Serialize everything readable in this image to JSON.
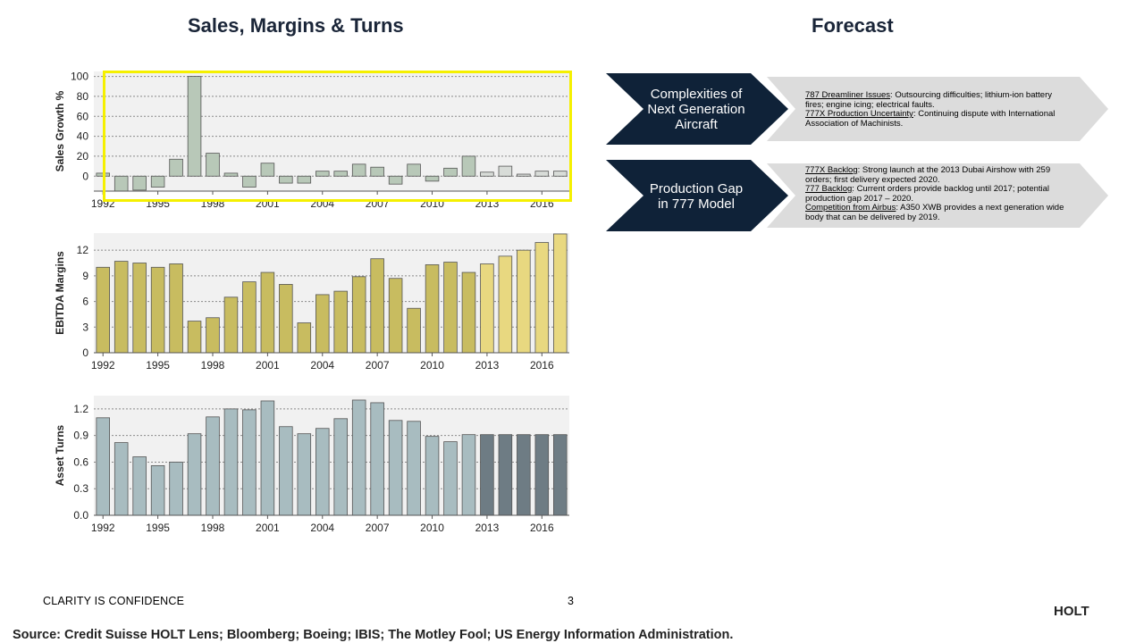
{
  "titles": {
    "left": "Sales, Margins & Turns",
    "right": "Forecast"
  },
  "chart_data": [
    {
      "type": "bar",
      "ylabel": "Sales Growth %",
      "ylim": [
        -15,
        105
      ],
      "yticks": [
        0,
        20,
        40,
        60,
        80,
        100
      ],
      "ytick_labels": [
        "0",
        "20",
        "40",
        "60",
        "80",
        "100"
      ],
      "x": [
        1992,
        1993,
        1994,
        1995,
        1996,
        1997,
        1998,
        1999,
        2000,
        2001,
        2002,
        2003,
        2004,
        2005,
        2006,
        2007,
        2008,
        2009,
        2010,
        2011,
        2012,
        2013,
        2014,
        2015,
        2016,
        2017
      ],
      "xtick_years": [
        1992,
        1995,
        1998,
        2001,
        2004,
        2007,
        2010,
        2013,
        2016
      ],
      "values": [
        3,
        -15,
        -14,
        -11,
        17,
        100,
        23,
        3,
        -11,
        13,
        -7,
        -7,
        5,
        5,
        12,
        9,
        -8,
        12,
        -5,
        8,
        20,
        4,
        10,
        2,
        5,
        5
      ],
      "forecast_from": 2013,
      "grid": true,
      "colors": {
        "historic": "#b8c8b8",
        "forecast": "#d8dcd8"
      }
    },
    {
      "type": "bar",
      "ylabel": "EBITDA Margins",
      "ylim": [
        0,
        14
      ],
      "yticks": [
        0,
        3,
        6,
        9,
        12
      ],
      "ytick_labels": [
        "0",
        "3",
        "6",
        "9",
        "12"
      ],
      "x": [
        1992,
        1993,
        1994,
        1995,
        1996,
        1997,
        1998,
        1999,
        2000,
        2001,
        2002,
        2003,
        2004,
        2005,
        2006,
        2007,
        2008,
        2009,
        2010,
        2011,
        2012,
        2013,
        2014,
        2015,
        2016,
        2017
      ],
      "xtick_years": [
        1992,
        1995,
        1998,
        2001,
        2004,
        2007,
        2010,
        2013,
        2016
      ],
      "values": [
        10,
        10.7,
        10.5,
        10,
        10.4,
        3.7,
        4.1,
        6.5,
        8.3,
        9.4,
        8,
        3.5,
        6.8,
        7.2,
        8.9,
        11,
        8.7,
        5.2,
        10.3,
        10.6,
        9.4,
        10.4,
        11.3,
        12,
        12.9,
        13.9
      ],
      "forecast_from": 2013,
      "grid": true,
      "colors": {
        "historic": "#c8bc60",
        "forecast": "#e8d880"
      }
    },
    {
      "type": "bar",
      "ylabel": "Asset Turns",
      "ylim": [
        0,
        1.35
      ],
      "yticks": [
        0,
        0.3,
        0.6,
        0.9,
        1.2
      ],
      "ytick_labels": [
        "0.0",
        "0.3",
        "0.6",
        "0.9",
        "1.2"
      ],
      "x": [
        1992,
        1993,
        1994,
        1995,
        1996,
        1997,
        1998,
        1999,
        2000,
        2001,
        2002,
        2003,
        2004,
        2005,
        2006,
        2007,
        2008,
        2009,
        2010,
        2011,
        2012,
        2013,
        2014,
        2015,
        2016,
        2017
      ],
      "xtick_years": [
        1992,
        1995,
        1998,
        2001,
        2004,
        2007,
        2010,
        2013,
        2016
      ],
      "values": [
        1.1,
        0.82,
        0.66,
        0.56,
        0.6,
        0.92,
        1.11,
        1.2,
        1.19,
        1.29,
        1.0,
        0.92,
        0.98,
        1.09,
        1.3,
        1.27,
        1.07,
        1.06,
        0.89,
        0.83,
        0.91,
        0.91,
        0.91,
        0.91,
        0.91,
        0.91
      ],
      "forecast_from": 2013,
      "grid": true,
      "colors": {
        "historic": "#a8bcc0",
        "forecast": "#6e7c84"
      }
    }
  ],
  "forecast": [
    {
      "label": "Complexities of Next Generation Aircraft",
      "label_lines": [
        "Complexities of",
        "Next Generation",
        "Aircraft"
      ],
      "details": [
        {
          "heading": "787 Dreamliner Issues",
          "text": ": Outsourcing difficulties; lithium-ion battery fires; engine icing; electrical faults."
        },
        {
          "heading": "777X Production Uncertainty",
          "text": ": Continuing dispute with International Association of Machinists."
        }
      ]
    },
    {
      "label": "Production Gap in 777 Model",
      "label_lines": [
        "Production Gap",
        "in 777 Model"
      ],
      "details": [
        {
          "heading": "777X Backlog",
          "text": ": Strong launch at the 2013 Dubai Airshow with 259 orders; first delivery expected 2020."
        },
        {
          "heading": "777 Backlog",
          "text": ": Current orders provide backlog until 2017; potential production gap 2017 – 2020."
        },
        {
          "heading": "Competition  from Airbus",
          "text": ": A350 XWB provides a next generation wide body that can be delivered by 2019."
        }
      ]
    }
  ],
  "footer": {
    "tagline": "CLARITY IS CONFIDENCE",
    "page": "3",
    "brand": "HOLT",
    "source": "Source: Credit Suisse HOLT Lens; Bloomberg; Boeing; IBIS; The Motley Fool; US Energy Information Administration."
  },
  "colors": {
    "navy": "#0f2238",
    "title": "#1a2538",
    "chevron": "#dcdcdc",
    "highlight": "#f5f000"
  }
}
